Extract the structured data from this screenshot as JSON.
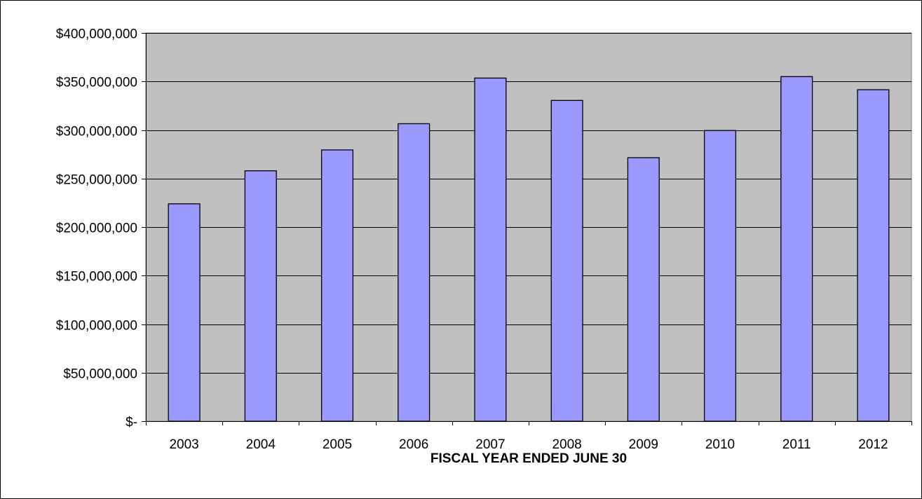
{
  "chart_data": {
    "type": "bar",
    "title": "",
    "xlabel": "FISCAL YEAR ENDED JUNE 30",
    "ylabel": "",
    "categories": [
      "2003",
      "2004",
      "2005",
      "2006",
      "2007",
      "2008",
      "2009",
      "2010",
      "2011",
      "2012"
    ],
    "values": [
      224000000,
      258000000,
      279500000,
      306500000,
      353500000,
      330500000,
      271500000,
      299500000,
      355000000,
      341500000
    ],
    "ylim": [
      0,
      400000000
    ],
    "yticks": [
      0,
      50000000,
      100000000,
      150000000,
      200000000,
      250000000,
      300000000,
      350000000,
      400000000
    ],
    "ytick_labels": [
      "$-",
      "$50,000,000",
      "$100,000,000",
      "$150,000,000",
      "$200,000,000",
      "$250,000,000",
      "$300,000,000",
      "$350,000,000",
      "$400,000,000"
    ],
    "grid": true,
    "legend": "none",
    "colors": {
      "bar_fill": "#9999ff",
      "bar_stroke": "#000000",
      "plot_background": "#c0c0c0",
      "gridline": "#000000"
    }
  }
}
